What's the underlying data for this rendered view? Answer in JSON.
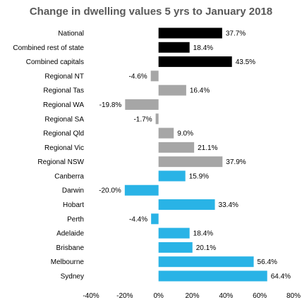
{
  "chart_data": {
    "type": "bar",
    "orientation": "horizontal",
    "title": "Change in dwelling values 5 yrs to January 2018",
    "categories": [
      "National",
      "Combined rest of state",
      "Combined capitals",
      "Regional NT",
      "Regional Tas",
      "Regional WA",
      "Regional SA",
      "Regional Qld",
      "Regional Vic",
      "Regional NSW",
      "Canberra",
      "Darwin",
      "Hobart",
      "Perth",
      "Adelaide",
      "Brisbane",
      "Melbourne",
      "Sydney"
    ],
    "values": [
      37.7,
      18.4,
      43.5,
      -4.6,
      16.4,
      -19.8,
      -1.7,
      9.0,
      21.1,
      37.9,
      15.9,
      -20.0,
      33.4,
      -4.4,
      18.4,
      20.1,
      56.4,
      64.4
    ],
    "value_labels": [
      "37.7%",
      "18.4%",
      "43.5%",
      "-4.6%",
      "16.4%",
      "-19.8%",
      "-1.7%",
      "9.0%",
      "21.1%",
      "37.9%",
      "15.9%",
      "-20.0%",
      "33.4%",
      "-4.4%",
      "18.4%",
      "20.1%",
      "56.4%",
      "64.4%"
    ],
    "groups": [
      "aggregate",
      "aggregate",
      "aggregate",
      "regional",
      "regional",
      "regional",
      "regional",
      "regional",
      "regional",
      "regional",
      "capital",
      "capital",
      "capital",
      "capital",
      "capital",
      "capital",
      "capital",
      "capital"
    ],
    "group_colors": {
      "aggregate": "#000000",
      "regional": "#a6a6a6",
      "capital": "#29b3e6"
    },
    "xlim": [
      -40,
      80
    ],
    "xticks": [
      -40,
      -20,
      0,
      20,
      40,
      60,
      80
    ],
    "xtick_labels": [
      "-40%",
      "-20%",
      "0%",
      "20%",
      "40%",
      "60%",
      "80%"
    ],
    "grid": false,
    "legend": "none"
  }
}
